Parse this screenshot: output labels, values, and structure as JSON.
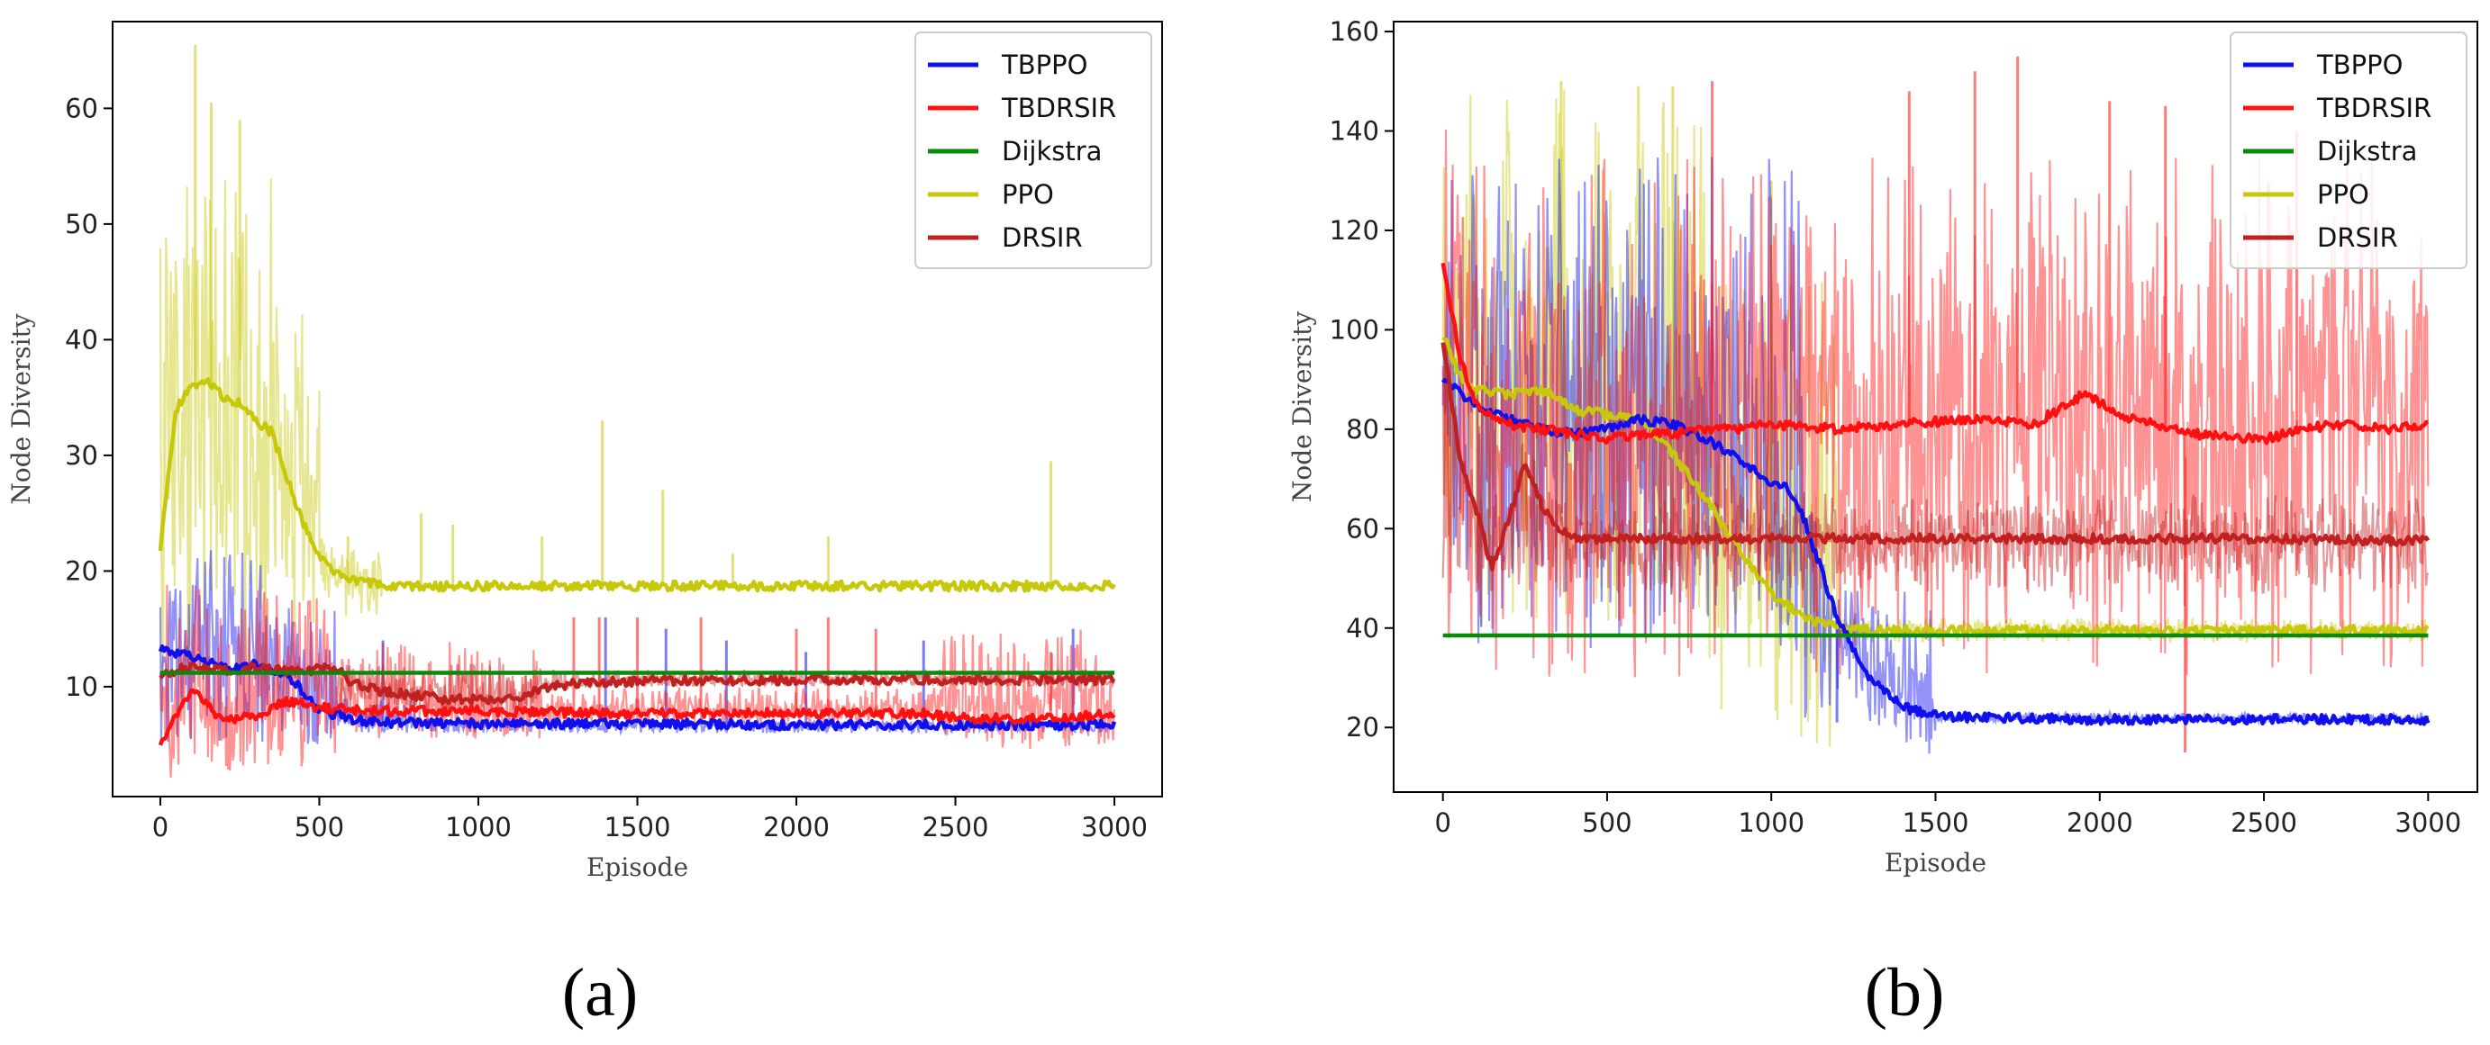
{
  "chart_data": [
    {
      "type": "line",
      "caption": "(a)",
      "xlabel": "Episode",
      "ylabel": "Node Diversity",
      "xlim": [
        -150,
        3150
      ],
      "ylim": [
        0.5,
        67.5
      ],
      "xticks": [
        0,
        500,
        1000,
        1500,
        2000,
        2500,
        3000
      ],
      "yticks": [
        10,
        20,
        30,
        40,
        50,
        60
      ],
      "legend_position": "top-right",
      "series": [
        {
          "name": "TBPPO",
          "color": "#1010ee",
          "x": [
            0,
            100,
            200,
            300,
            400,
            500,
            600,
            700,
            800,
            1000,
            1500,
            2000,
            2500,
            3000
          ],
          "smooth": [
            13.3,
            12.5,
            11.6,
            11.9,
            11.0,
            8.0,
            7.2,
            6.9,
            6.9,
            6.8,
            6.8,
            6.7,
            6.7,
            6.7
          ],
          "raw_band": [
            [
              0,
              350,
              5,
              22
            ],
            [
              350,
              550,
              5,
              17
            ],
            [
              550,
              800,
              6,
              9
            ],
            [
              800,
              3000,
              6,
              7
            ]
          ],
          "spikes": [
            [
              700,
              14
            ],
            [
              1400,
              16
            ],
            [
              1590,
              15
            ],
            [
              1780,
              14
            ],
            [
              2030,
              13
            ],
            [
              2400,
              14
            ],
            [
              2870,
              15
            ]
          ]
        },
        {
          "name": "TBDRSIR",
          "color": "#ff1010",
          "x": [
            0,
            100,
            200,
            300,
            400,
            500,
            600,
            700,
            1000,
            1500,
            2000,
            2400,
            2500,
            2700,
            3000
          ],
          "smooth": [
            5.2,
            9.8,
            7.0,
            7.5,
            8.8,
            8.2,
            8.0,
            7.9,
            7.9,
            7.7,
            7.7,
            7.7,
            7.3,
            7.2,
            7.6
          ],
          "raw_band": [
            [
              0,
              550,
              3,
              19
            ],
            [
              550,
              1200,
              6,
              14
            ],
            [
              1200,
              2450,
              7,
              10
            ],
            [
              2450,
              3000,
              6,
              15
            ]
          ],
          "spikes": [
            [
              1300,
              16
            ],
            [
              1380,
              16
            ],
            [
              1500,
              16
            ],
            [
              1700,
              16
            ],
            [
              2000,
              15
            ],
            [
              2100,
              16
            ],
            [
              2250,
              15
            ],
            [
              2800,
              13
            ]
          ]
        },
        {
          "name": "Dijkstra",
          "color": "#0a8a0a",
          "x": [
            0,
            3000
          ],
          "smooth": [
            11.2,
            11.2
          ]
        },
        {
          "name": "PPO",
          "color": "#c8c80a",
          "x": [
            0,
            50,
            100,
            150,
            200,
            250,
            300,
            350,
            400,
            450,
            500,
            550,
            600,
            700,
            800,
            1000,
            1500,
            2000,
            2500,
            3000
          ],
          "smooth": [
            22,
            34,
            36,
            36.5,
            35,
            34.5,
            33,
            32,
            28,
            24,
            21.5,
            20,
            19.2,
            18.8,
            18.7,
            18.7,
            18.7,
            18.7,
            18.7,
            18.7
          ],
          "raw_band": [
            [
              0,
              350,
              10,
              55
            ],
            [
              350,
              500,
              15,
              44
            ],
            [
              500,
              700,
              16,
              22
            ]
          ],
          "spikes": [
            [
              110,
              65.5
            ],
            [
              160,
              60.5
            ],
            [
              250,
              59
            ],
            [
              590,
              23
            ],
            [
              820,
              25
            ],
            [
              920,
              24
            ],
            [
              1200,
              23
            ],
            [
              1390,
              33
            ],
            [
              1580,
              27
            ],
            [
              1800,
              21.5
            ],
            [
              2100,
              23
            ],
            [
              2800,
              29.5
            ]
          ]
        },
        {
          "name": "DRSIR",
          "color": "#c02020",
          "x": [
            0,
            100,
            200,
            300,
            400,
            500,
            550,
            600,
            700,
            900,
            1100,
            1200,
            1300,
            1500,
            2000,
            2500,
            3000
          ],
          "smooth": [
            11.0,
            11.8,
            11.3,
            11.6,
            11.3,
            11.5,
            11.8,
            10.4,
            9.6,
            8.9,
            8.9,
            9.8,
            10.3,
            10.5,
            10.6,
            10.6,
            10.6
          ],
          "raw_band": [
            [
              550,
              1200,
              8,
              12
            ],
            [
              1200,
              3000,
              10,
              11.5
            ]
          ]
        }
      ]
    },
    {
      "type": "line",
      "caption": "(b)",
      "xlabel": "Episode",
      "ylabel": "Node Diversity",
      "xlim": [
        -150,
        3150
      ],
      "ylim": [
        7,
        162
      ],
      "xticks": [
        0,
        500,
        1000,
        1500,
        2000,
        2500,
        3000
      ],
      "yticks": [
        20,
        40,
        60,
        80,
        100,
        120,
        140,
        160
      ],
      "legend_position": "top-right",
      "series": [
        {
          "name": "TBPPO",
          "color": "#1010ee",
          "x": [
            0,
            100,
            200,
            300,
            400,
            500,
            600,
            700,
            800,
            900,
            1000,
            1050,
            1100,
            1150,
            1200,
            1300,
            1400,
            1500,
            1600,
            1800,
            2000,
            2500,
            3000
          ],
          "smooth": [
            90,
            85,
            82,
            80,
            79,
            80,
            82,
            81,
            78,
            74,
            69,
            68,
            62,
            52,
            42,
            30,
            24,
            22.5,
            22,
            21.8,
            21.6,
            21.6,
            21.6
          ],
          "raw_band": [
            [
              0,
              1100,
              35,
              135
            ],
            [
              1100,
              1500,
              21,
              48
            ],
            [
              1500,
              3000,
              21,
              23
            ]
          ],
          "spikes": [
            [
              1200,
              21
            ],
            [
              2800,
              22
            ]
          ]
        },
        {
          "name": "TBDRSIR",
          "color": "#ff1010",
          "x": [
            0,
            50,
            100,
            200,
            300,
            400,
            500,
            600,
            700,
            800,
            900,
            1000,
            1200,
            1400,
            1600,
            1800,
            1950,
            2100,
            2300,
            2500,
            2700,
            2900,
            3000
          ],
          "smooth": [
            114,
            95,
            85,
            81,
            80,
            79,
            78,
            79,
            79,
            80,
            80,
            81,
            80,
            81,
            82,
            81,
            87,
            82,
            79,
            78,
            81,
            80,
            81
          ],
          "raw_band": [
            [
              0,
              3000,
              30,
              135
            ]
          ],
          "spikes": [
            [
              1750,
              155
            ],
            [
              1620,
              152
            ],
            [
              1420,
              148
            ],
            [
              2030,
              146
            ],
            [
              2200,
              145
            ],
            [
              2600,
              140
            ],
            [
              820,
              150
            ],
            [
              2260,
              15
            ]
          ]
        },
        {
          "name": "Dijkstra",
          "color": "#0a8a0a",
          "x": [
            0,
            3000
          ],
          "smooth": [
            38.5,
            38.5
          ]
        },
        {
          "name": "PPO",
          "color": "#c8c80a",
          "x": [
            0,
            50,
            100,
            200,
            300,
            400,
            500,
            600,
            700,
            800,
            900,
            1000,
            1100,
            1200,
            1300,
            1500,
            2000,
            2500,
            3000
          ],
          "smooth": [
            99,
            91,
            88,
            87,
            88,
            84,
            83,
            82,
            75,
            66,
            56,
            47,
            42,
            40,
            39.5,
            39.5,
            39.5,
            39.5,
            39.5
          ],
          "raw_band": [
            [
              0,
              800,
              40,
              150
            ],
            [
              800,
              1200,
              21,
              110
            ],
            [
              1200,
              3000,
              37,
              42
            ]
          ],
          "spikes": [
            [
              700,
              149
            ],
            [
              360,
              150
            ],
            [
              1000,
              130
            ]
          ]
        },
        {
          "name": "DRSIR",
          "color": "#c02020",
          "x": [
            0,
            50,
            100,
            150,
            200,
            250,
            300,
            350,
            400,
            500,
            700,
            1000,
            1500,
            2000,
            2500,
            3000
          ],
          "smooth": [
            98,
            75,
            64,
            52,
            62,
            73,
            65,
            60,
            58,
            58,
            58,
            58,
            58,
            58,
            58,
            57.5
          ],
          "raw_band": [
            [
              0,
              3000,
              47,
              67
            ]
          ]
        }
      ]
    }
  ]
}
